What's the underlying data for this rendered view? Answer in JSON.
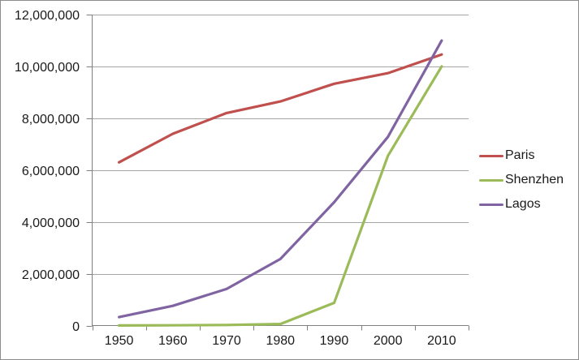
{
  "chart_data": {
    "type": "line",
    "title": "",
    "xlabel": "",
    "ylabel": "",
    "categories": [
      "1950",
      "1960",
      "1970",
      "1980",
      "1990",
      "2000",
      "2010"
    ],
    "series": [
      {
        "name": "Paris",
        "color": "#C0504D",
        "values": [
          6300000,
          7400000,
          8200000,
          8650000,
          9330000,
          9740000,
          10460000
        ]
      },
      {
        "name": "Shenzhen",
        "color": "#9BBB59",
        "values": [
          3000,
          8000,
          22000,
          58000,
          875000,
          6550000,
          10000000
        ]
      },
      {
        "name": "Lagos",
        "color": "#8064A2",
        "values": [
          325000,
          760000,
          1410000,
          2570000,
          4760000,
          7280000,
          11000000
        ]
      }
    ],
    "ylim": [
      0,
      12000000
    ],
    "y_tick_step": 2000000,
    "y_tick_labels": [
      "0",
      "2,000,000",
      "4,000,000",
      "6,000,000",
      "8,000,000",
      "10,000,000",
      "12,000,000"
    ],
    "grid": true,
    "legend_position": "right"
  },
  "style": {
    "background": "#FFFFFF",
    "border_color": "#8C8C8C",
    "gridline_color": "#A6A6A6",
    "axis_color": "#808080",
    "text_color": "#1A1A1A"
  }
}
